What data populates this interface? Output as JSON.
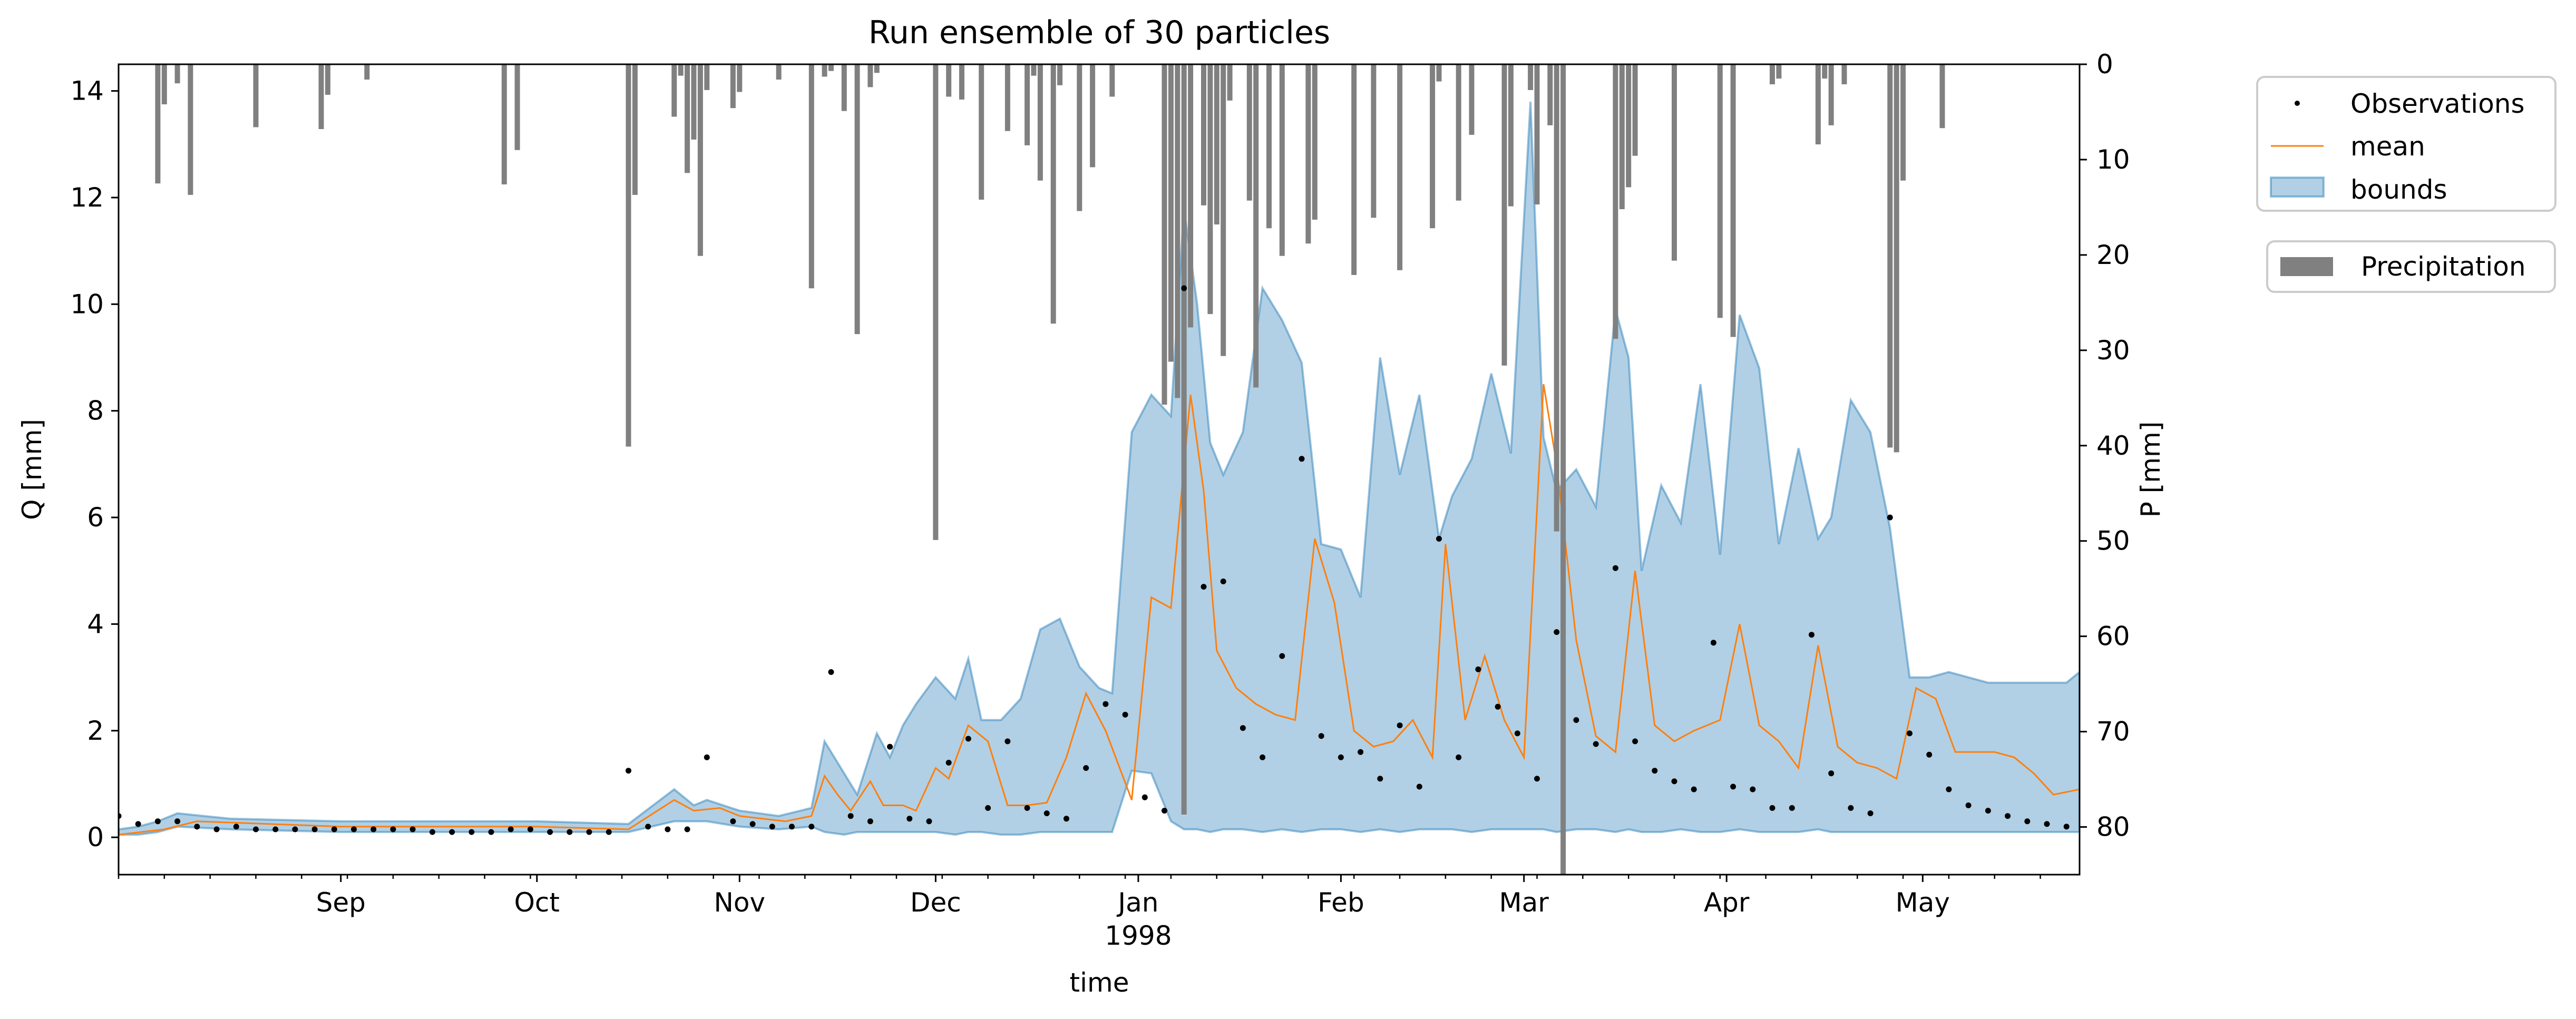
{
  "chart_data": {
    "type": "line",
    "title": "Run ensemble of 30 particles",
    "xlabel": "time",
    "ylabel": "Q [mm]",
    "ylabel_right": "P [mm]",
    "x_range": [
      "1997-07-29",
      "1998-05-25"
    ],
    "ylim": [
      -0.7,
      14.5
    ],
    "ylim_right": [
      85,
      0
    ],
    "yticks": [
      0,
      2,
      4,
      6,
      8,
      10,
      12,
      14
    ],
    "yticks_right": [
      0,
      10,
      20,
      30,
      40,
      50,
      60,
      70,
      80
    ],
    "xticks": [
      {
        "date": "1997-09-01",
        "label": "Sep",
        "sublabel": ""
      },
      {
        "date": "1997-10-01",
        "label": "Oct",
        "sublabel": ""
      },
      {
        "date": "1997-11-01",
        "label": "Nov",
        "sublabel": ""
      },
      {
        "date": "1997-12-01",
        "label": "Dec",
        "sublabel": ""
      },
      {
        "date": "1998-01-01",
        "label": "Jan",
        "sublabel": "1998"
      },
      {
        "date": "1998-02-01",
        "label": "Feb",
        "sublabel": ""
      },
      {
        "date": "1998-03-01",
        "label": "Mar",
        "sublabel": ""
      },
      {
        "date": "1998-04-01",
        "label": "Apr",
        "sublabel": ""
      },
      {
        "date": "1998-05-01",
        "label": "May",
        "sublabel": ""
      }
    ],
    "grid": false,
    "legend": {
      "position": "outside-right",
      "entries": [
        {
          "label": "Observations",
          "kind": "marker",
          "color": "#000000"
        },
        {
          "label": "mean",
          "kind": "line",
          "color": "#ff7f0e"
        },
        {
          "label": "bounds",
          "kind": "patch",
          "color": "#1f77b4"
        }
      ],
      "secondary": [
        {
          "label": "Precipitation",
          "kind": "patch",
          "color": "#808080"
        }
      ]
    },
    "colors": {
      "bounds": "#1f77b4",
      "mean": "#ff7f0e",
      "observations": "#000000",
      "precipitation": "#808080"
    },
    "bounds": {
      "name": "bounds",
      "dates": [
        "1997-07-29",
        "1997-08-01",
        "1997-08-04",
        "1997-08-07",
        "1997-08-15",
        "1997-09-01",
        "1997-10-01",
        "1997-10-15",
        "1997-10-22",
        "1997-10-25",
        "1997-10-27",
        "1997-11-01",
        "1997-11-07",
        "1997-11-12",
        "1997-11-14",
        "1997-11-17",
        "1997-11-19",
        "1997-11-22",
        "1997-11-24",
        "1997-11-26",
        "1997-11-28",
        "1997-12-01",
        "1997-12-04",
        "1997-12-06",
        "1997-12-08",
        "1997-12-11",
        "1997-12-14",
        "1997-12-17",
        "1997-12-20",
        "1997-12-23",
        "1997-12-26",
        "1997-12-28",
        "1997-12-31",
        "1998-01-03",
        "1998-01-06",
        "1998-01-08",
        "1998-01-10",
        "1998-01-12",
        "1998-01-14",
        "1998-01-17",
        "1998-01-20",
        "1998-01-23",
        "1998-01-26",
        "1998-01-29",
        "1998-02-01",
        "1998-02-04",
        "1998-02-07",
        "1998-02-10",
        "1998-02-13",
        "1998-02-16",
        "1998-02-18",
        "1998-02-21",
        "1998-02-24",
        "1998-02-27",
        "1998-03-02",
        "1998-03-04",
        "1998-03-06",
        "1998-03-09",
        "1998-03-12",
        "1998-03-15",
        "1998-03-17",
        "1998-03-19",
        "1998-03-22",
        "1998-03-25",
        "1998-03-28",
        "1998-03-31",
        "1998-04-03",
        "1998-04-06",
        "1998-04-09",
        "1998-04-12",
        "1998-04-15",
        "1998-04-17",
        "1998-04-20",
        "1998-04-23",
        "1998-04-26",
        "1998-04-29",
        "1998-05-02",
        "1998-05-05",
        "1998-05-08",
        "1998-05-11",
        "1998-05-14",
        "1998-05-17",
        "1998-05-20",
        "1998-05-23",
        "1998-05-25"
      ],
      "upper": [
        0.15,
        0.2,
        0.3,
        0.45,
        0.35,
        0.3,
        0.3,
        0.25,
        0.9,
        0.6,
        0.7,
        0.5,
        0.4,
        0.55,
        1.8,
        1.2,
        0.8,
        1.95,
        1.5,
        2.1,
        2.5,
        3.0,
        2.6,
        3.35,
        2.2,
        2.2,
        2.6,
        3.9,
        4.1,
        3.2,
        2.8,
        2.7,
        7.6,
        8.3,
        7.9,
        11.8,
        10.0,
        7.4,
        6.8,
        7.6,
        10.3,
        9.7,
        8.9,
        5.5,
        5.4,
        4.5,
        9.0,
        6.8,
        8.3,
        5.6,
        6.4,
        7.1,
        8.7,
        7.2,
        13.8,
        7.5,
        6.5,
        6.9,
        6.2,
        9.9,
        9.0,
        5.0,
        6.6,
        5.9,
        8.5,
        5.3,
        9.8,
        8.8,
        5.5,
        7.3,
        5.6,
        6.0,
        8.2,
        7.6,
        5.8,
        3.0,
        3.0,
        3.1,
        3.0,
        2.9,
        2.9,
        2.9,
        2.9,
        2.9,
        3.1
      ],
      "lower": [
        0.05,
        0.05,
        0.1,
        0.2,
        0.15,
        0.1,
        0.1,
        0.1,
        0.3,
        0.3,
        0.3,
        0.2,
        0.15,
        0.2,
        0.1,
        0.05,
        0.1,
        0.1,
        0.1,
        0.1,
        0.1,
        0.1,
        0.05,
        0.1,
        0.1,
        0.05,
        0.05,
        0.1,
        0.1,
        0.1,
        0.1,
        0.1,
        1.25,
        1.2,
        0.3,
        0.15,
        0.15,
        0.1,
        0.15,
        0.15,
        0.1,
        0.15,
        0.1,
        0.15,
        0.15,
        0.1,
        0.15,
        0.1,
        0.15,
        0.15,
        0.15,
        0.1,
        0.15,
        0.15,
        0.15,
        0.15,
        0.1,
        0.15,
        0.15,
        0.1,
        0.15,
        0.1,
        0.1,
        0.15,
        0.1,
        0.1,
        0.15,
        0.1,
        0.1,
        0.1,
        0.15,
        0.1,
        0.1,
        0.1,
        0.1,
        0.1,
        0.1,
        0.1,
        0.1,
        0.1,
        0.1,
        0.1,
        0.1,
        0.1,
        0.1
      ]
    },
    "mean": {
      "name": "mean",
      "dates": [
        "1997-07-29",
        "1997-08-05",
        "1997-08-10",
        "1997-09-01",
        "1997-10-01",
        "1997-10-15",
        "1997-10-22",
        "1997-10-25",
        "1997-10-29",
        "1997-11-01",
        "1997-11-08",
        "1997-11-12",
        "1997-11-14",
        "1997-11-16",
        "1997-11-18",
        "1997-11-21",
        "1997-11-23",
        "1997-11-26",
        "1997-11-28",
        "1997-12-01",
        "1997-12-03",
        "1997-12-06",
        "1997-12-09",
        "1997-12-12",
        "1997-12-15",
        "1997-12-18",
        "1997-12-21",
        "1997-12-24",
        "1997-12-27",
        "1997-12-31",
        "1998-01-03",
        "1998-01-06",
        "1998-01-09",
        "1998-01-11",
        "1998-01-13",
        "1998-01-16",
        "1998-01-19",
        "1998-01-22",
        "1998-01-25",
        "1998-01-28",
        "1998-01-31",
        "1998-02-03",
        "1998-02-06",
        "1998-02-09",
        "1998-02-12",
        "1998-02-15",
        "1998-02-17",
        "1998-02-20",
        "1998-02-23",
        "1998-02-26",
        "1998-03-01",
        "1998-03-04",
        "1998-03-06",
        "1998-03-09",
        "1998-03-12",
        "1998-03-15",
        "1998-03-18",
        "1998-03-21",
        "1998-03-24",
        "1998-03-27",
        "1998-03-31",
        "1998-04-03",
        "1998-04-06",
        "1998-04-09",
        "1998-04-12",
        "1998-04-15",
        "1998-04-18",
        "1998-04-21",
        "1998-04-24",
        "1998-04-27",
        "1998-04-30",
        "1998-05-03",
        "1998-05-06",
        "1998-05-09",
        "1998-05-12",
        "1998-05-15",
        "1998-05-18",
        "1998-05-21",
        "1998-05-25"
      ],
      "values": [
        0.05,
        0.15,
        0.3,
        0.2,
        0.2,
        0.15,
        0.7,
        0.5,
        0.55,
        0.4,
        0.3,
        0.4,
        1.15,
        0.8,
        0.5,
        1.05,
        0.6,
        0.6,
        0.5,
        1.3,
        1.1,
        2.1,
        1.8,
        0.6,
        0.6,
        0.65,
        1.5,
        2.7,
        2.0,
        0.7,
        4.5,
        4.3,
        8.3,
        6.5,
        3.5,
        2.8,
        2.5,
        2.3,
        2.2,
        5.6,
        4.4,
        2.0,
        1.7,
        1.8,
        2.2,
        1.5,
        5.5,
        2.2,
        3.4,
        2.2,
        1.5,
        8.5,
        7.0,
        3.7,
        1.9,
        1.6,
        5.0,
        2.1,
        1.8,
        2.0,
        2.2,
        4.0,
        2.1,
        1.8,
        1.3,
        3.6,
        1.7,
        1.4,
        1.3,
        1.1,
        2.8,
        2.6,
        1.6,
        1.6,
        1.6,
        1.5,
        1.2,
        0.8,
        0.9
      ]
    },
    "observations": {
      "name": "Observations",
      "dates": [
        "1997-07-29",
        "1997-08-01",
        "1997-08-04",
        "1997-08-07",
        "1997-08-10",
        "1997-08-13",
        "1997-08-16",
        "1997-08-19",
        "1997-08-22",
        "1997-08-25",
        "1997-08-28",
        "1997-08-31",
        "1997-09-03",
        "1997-09-06",
        "1997-09-09",
        "1997-09-12",
        "1997-09-15",
        "1997-09-18",
        "1997-09-21",
        "1997-09-24",
        "1997-09-27",
        "1997-09-30",
        "1997-10-03",
        "1997-10-06",
        "1997-10-09",
        "1997-10-12",
        "1997-10-15",
        "1997-10-18",
        "1997-10-21",
        "1997-10-24",
        "1997-10-27",
        "1997-10-31",
        "1997-11-03",
        "1997-11-06",
        "1997-11-09",
        "1997-11-12",
        "1997-11-15",
        "1997-11-18",
        "1997-11-21",
        "1997-11-24",
        "1997-11-27",
        "1997-11-30",
        "1997-12-03",
        "1997-12-06",
        "1997-12-09",
        "1997-12-12",
        "1997-12-15",
        "1997-12-18",
        "1997-12-21",
        "1997-12-24",
        "1997-12-27",
        "1997-12-30",
        "1998-01-02",
        "1998-01-05",
        "1998-01-08",
        "1998-01-11",
        "1998-01-14",
        "1998-01-17",
        "1998-01-20",
        "1998-01-23",
        "1998-01-26",
        "1998-01-29",
        "1998-02-01",
        "1998-02-04",
        "1998-02-07",
        "1998-02-10",
        "1998-02-13",
        "1998-02-16",
        "1998-02-19",
        "1998-02-22",
        "1998-02-25",
        "1998-02-28",
        "1998-03-03",
        "1998-03-06",
        "1998-03-09",
        "1998-03-12",
        "1998-03-15",
        "1998-03-18",
        "1998-03-21",
        "1998-03-24",
        "1998-03-27",
        "1998-03-30",
        "1998-04-02",
        "1998-04-05",
        "1998-04-08",
        "1998-04-11",
        "1998-04-14",
        "1998-04-17",
        "1998-04-20",
        "1998-04-23",
        "1998-04-26",
        "1998-04-29",
        "1998-05-02",
        "1998-05-05",
        "1998-05-08",
        "1998-05-11",
        "1998-05-14",
        "1998-05-17",
        "1998-05-20",
        "1998-05-23"
      ],
      "values": [
        0.4,
        0.25,
        0.3,
        0.3,
        0.2,
        0.15,
        0.2,
        0.15,
        0.15,
        0.15,
        0.15,
        0.15,
        0.15,
        0.15,
        0.15,
        0.15,
        0.1,
        0.1,
        0.1,
        0.1,
        0.15,
        0.15,
        0.1,
        0.1,
        0.1,
        0.1,
        1.25,
        0.2,
        0.15,
        0.15,
        1.5,
        0.3,
        0.25,
        0.2,
        0.2,
        0.2,
        3.1,
        0.4,
        0.3,
        1.7,
        0.35,
        0.3,
        1.4,
        1.85,
        0.55,
        1.8,
        0.55,
        0.45,
        0.35,
        1.3,
        2.5,
        2.3,
        0.75,
        0.5,
        10.3,
        4.7,
        4.8,
        2.05,
        1.5,
        3.4,
        7.1,
        1.9,
        1.5,
        1.6,
        1.1,
        2.1,
        0.95,
        5.6,
        1.5,
        3.15,
        2.45,
        1.95,
        1.1,
        3.85,
        2.2,
        1.75,
        5.05,
        1.8,
        1.25,
        1.05,
        0.9,
        3.65,
        0.95,
        0.9,
        0.55,
        0.55,
        3.8,
        1.2,
        0.55,
        0.45,
        6.0,
        1.95,
        1.55,
        0.9,
        0.6,
        0.5,
        0.4,
        0.3,
        0.25,
        0.2
      ]
    },
    "precipitation": {
      "name": "Precipitation",
      "dates": [
        "1997-08-04",
        "1997-08-05",
        "1997-08-07",
        "1997-08-09",
        "1997-08-19",
        "1997-08-29",
        "1997-08-30",
        "1997-09-05",
        "1997-09-26",
        "1997-09-28",
        "1997-10-15",
        "1997-10-16",
        "1997-10-22",
        "1997-10-23",
        "1997-10-24",
        "1997-10-25",
        "1997-10-26",
        "1997-10-27",
        "1997-10-31",
        "1997-11-01",
        "1997-11-07",
        "1997-11-12",
        "1997-11-14",
        "1997-11-15",
        "1997-11-17",
        "1997-11-19",
        "1997-11-21",
        "1997-11-22",
        "1997-12-01",
        "1997-12-03",
        "1997-12-05",
        "1997-12-08",
        "1997-12-12",
        "1997-12-15",
        "1997-12-16",
        "1997-12-17",
        "1997-12-19",
        "1997-12-20",
        "1997-12-23",
        "1997-12-25",
        "1997-12-28",
        "1998-01-05",
        "1998-01-06",
        "1998-01-07",
        "1998-01-08",
        "1998-01-09",
        "1998-01-11",
        "1998-01-12",
        "1998-01-13",
        "1998-01-14",
        "1998-01-15",
        "1998-01-18",
        "1998-01-19",
        "1998-01-21",
        "1998-01-23",
        "1998-01-27",
        "1998-01-28",
        "1998-02-03",
        "1998-02-06",
        "1998-02-10",
        "1998-02-15",
        "1998-02-16",
        "1998-02-19",
        "1998-02-21",
        "1998-02-26",
        "1998-02-27",
        "1998-03-02",
        "1998-03-03",
        "1998-03-05",
        "1998-03-06",
        "1998-03-07",
        "1998-03-15",
        "1998-03-16",
        "1998-03-17",
        "1998-03-18",
        "1998-03-24",
        "1998-03-31",
        "1998-04-02",
        "1998-04-08",
        "1998-04-09",
        "1998-04-15",
        "1998-04-16",
        "1998-04-17",
        "1998-04-19",
        "1998-04-26",
        "1998-04-27",
        "1998-04-28",
        "1998-05-04"
      ],
      "values": [
        12.5,
        4.2,
        2.0,
        13.7,
        6.6,
        6.8,
        3.2,
        1.6,
        12.6,
        9.0,
        40.1,
        13.7,
        5.5,
        1.2,
        11.4,
        7.9,
        20.1,
        2.7,
        4.6,
        2.9,
        1.6,
        23.5,
        1.3,
        0.7,
        4.9,
        28.3,
        2.4,
        0.9,
        49.9,
        3.4,
        3.7,
        14.2,
        7.0,
        8.5,
        1.2,
        12.2,
        27.2,
        2.2,
        15.4,
        10.8,
        3.4,
        35.7,
        31.2,
        35.0,
        78.7,
        27.6,
        14.8,
        26.2,
        16.8,
        30.6,
        3.8,
        14.3,
        33.9,
        17.2,
        20.1,
        18.8,
        16.3,
        22.1,
        16.1,
        21.6,
        17.2,
        1.8,
        14.3,
        7.4,
        31.6,
        14.9,
        2.7,
        14.7,
        6.4,
        49.0,
        85.0,
        28.8,
        15.2,
        12.9,
        9.6,
        20.6,
        26.6,
        28.6,
        2.1,
        1.5,
        8.4,
        1.5,
        6.4,
        2.1,
        40.2,
        40.7,
        12.2,
        6.7
      ]
    }
  }
}
